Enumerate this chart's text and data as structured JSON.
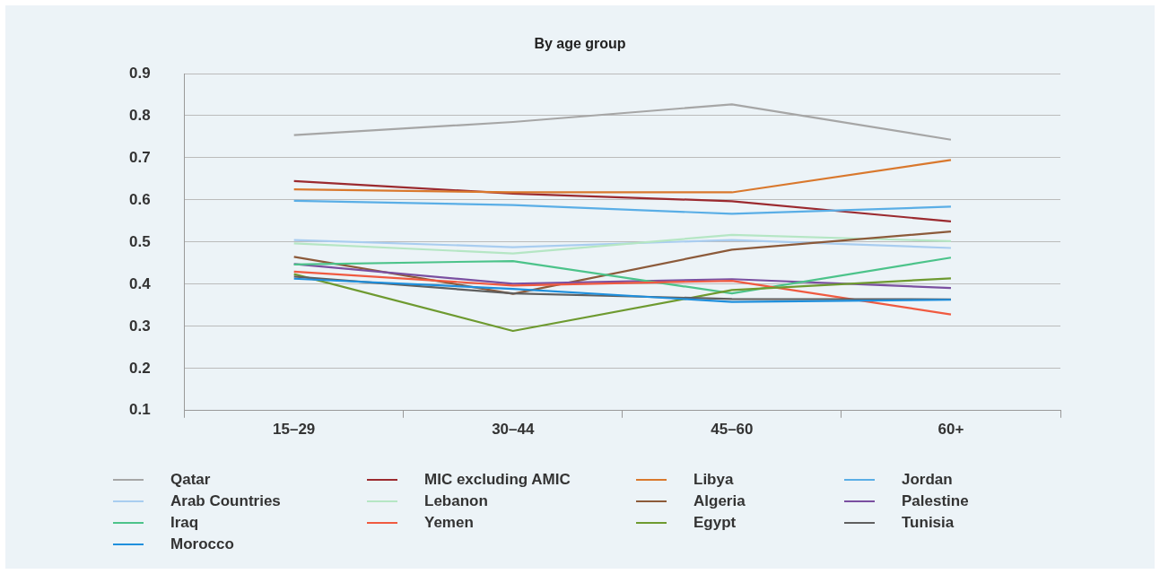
{
  "chart_data": {
    "type": "line",
    "title": "By age group",
    "categories": [
      "15–29",
      "30–44",
      "45–60",
      "60+"
    ],
    "ylim": [
      0.1,
      0.9
    ],
    "yticks": [
      0.1,
      0.2,
      0.3,
      0.4,
      0.5,
      0.6,
      0.7,
      0.8,
      0.9
    ],
    "grid": "y",
    "legend": "bottom",
    "marker": "none",
    "line_style": "solid",
    "series": [
      {
        "name": "Qatar",
        "color": "#a6a6a6",
        "values": [
          0.754,
          0.785,
          0.827,
          0.743
        ]
      },
      {
        "name": "MIC excluding AMIC",
        "color": "#9b2a2f",
        "values": [
          0.645,
          0.615,
          0.597,
          0.549
        ]
      },
      {
        "name": "Libya",
        "color": "#d9782d",
        "values": [
          0.625,
          0.618,
          0.618,
          0.695
        ]
      },
      {
        "name": "Jordan",
        "color": "#5aaee6",
        "values": [
          0.598,
          0.588,
          0.567,
          0.584
        ]
      },
      {
        "name": "Arab Countries",
        "color": "#a9cdf0",
        "values": [
          0.505,
          0.488,
          0.505,
          0.486
        ]
      },
      {
        "name": "Lebanon",
        "color": "#b5e6c4",
        "values": [
          0.497,
          0.473,
          0.517,
          0.502
        ]
      },
      {
        "name": "Algeria",
        "color": "#8c5a3a",
        "values": [
          0.465,
          0.377,
          0.482,
          0.525
        ]
      },
      {
        "name": "Palestine",
        "color": "#7a4fa0",
        "values": [
          0.448,
          0.401,
          0.412,
          0.391
        ]
      },
      {
        "name": "Iraq",
        "color": "#4cc38a",
        "values": [
          0.447,
          0.455,
          0.378,
          0.463
        ]
      },
      {
        "name": "Yemen",
        "color": "#f05a40",
        "values": [
          0.43,
          0.397,
          0.408,
          0.328
        ]
      },
      {
        "name": "Egypt",
        "color": "#6e9a30",
        "values": [
          0.424,
          0.289,
          0.386,
          0.414
        ]
      },
      {
        "name": "Tunisia",
        "color": "#5f5f5f",
        "values": [
          0.418,
          0.378,
          0.365,
          0.364
        ]
      },
      {
        "name": "Morocco",
        "color": "#1f8fdc",
        "values": [
          0.413,
          0.389,
          0.358,
          0.363
        ]
      }
    ]
  }
}
